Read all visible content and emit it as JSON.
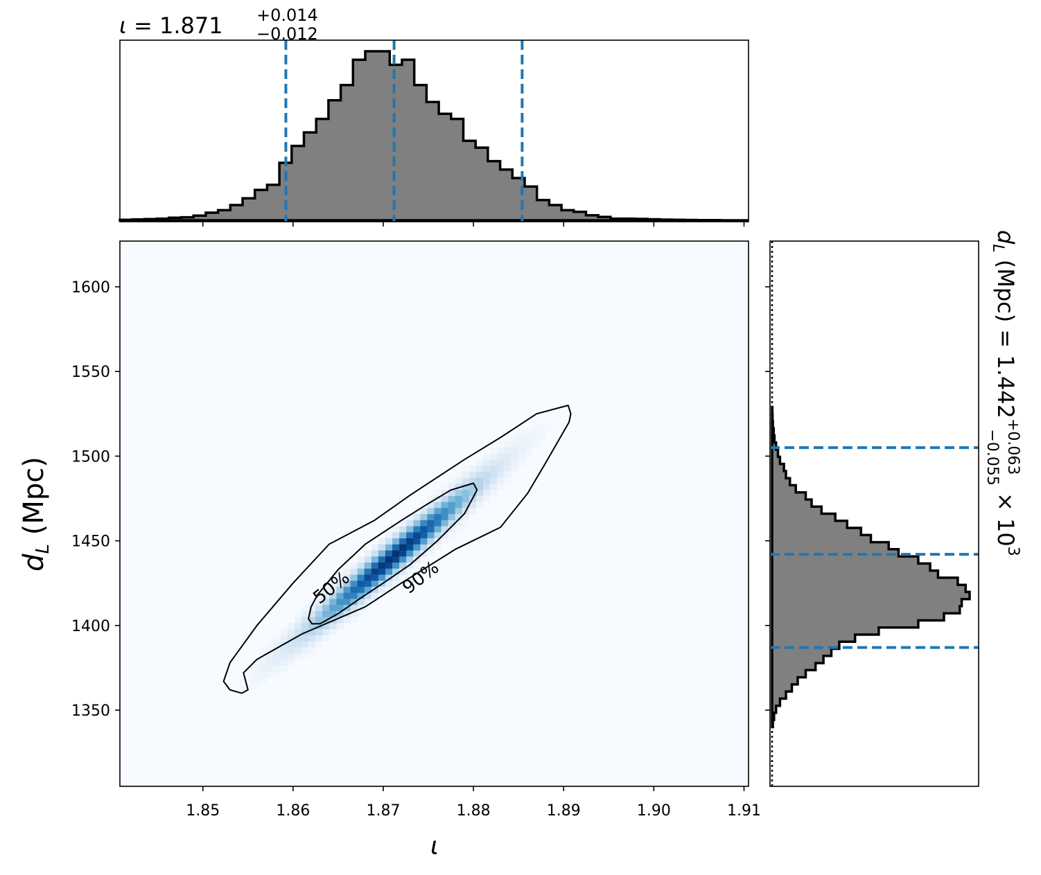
{
  "chart_data": {
    "type": "corner",
    "panels": [
      {
        "name": "marginal-iota",
        "type": "histogram",
        "title": {
          "param": "ι",
          "median": "1.871",
          "plus": "+0.014",
          "minus": "−0.012"
        },
        "xlim": [
          1.8408,
          1.9105
        ],
        "bin_edges_start": 1.8408,
        "bin_width": 0.00136,
        "counts": [
          0.003,
          0.005,
          0.007,
          0.01,
          0.015,
          0.018,
          0.028,
          0.045,
          0.06,
          0.09,
          0.13,
          0.18,
          0.21,
          0.34,
          0.44,
          0.52,
          0.6,
          0.71,
          0.8,
          0.95,
          1.0,
          1.0,
          0.92,
          0.95,
          0.8,
          0.7,
          0.63,
          0.6,
          0.47,
          0.43,
          0.35,
          0.3,
          0.25,
          0.2,
          0.12,
          0.09,
          0.06,
          0.05,
          0.03,
          0.02,
          0.01,
          0.01,
          0.008,
          0.006,
          0.004,
          0.003,
          0.002,
          0.001,
          0.001,
          0.0,
          0.0
        ],
        "quantiles": {
          "lower": 1.8592,
          "median": 1.8712,
          "upper": 1.8854
        },
        "xticks": [
          "1.85",
          "1.86",
          "1.87",
          "1.88",
          "1.89",
          "1.90",
          "1.91"
        ]
      },
      {
        "name": "joint-iota-dL",
        "type": "heatmap",
        "xlabel": "ι",
        "ylabel_main": "d",
        "ylabel_sub": "L",
        "ylabel_units": "(Mpc)",
        "xlim": [
          1.8408,
          1.9105
        ],
        "ylim": [
          1305,
          1627
        ],
        "xticks": [
          "1.85",
          "1.86",
          "1.87",
          "1.88",
          "1.89",
          "1.90",
          "1.91"
        ],
        "yticks": [
          "1350",
          "1400",
          "1450",
          "1500",
          "1550",
          "1600"
        ],
        "density": {
          "center": [
            1.8712,
            1441
          ],
          "slope_dL_per_iota": 4500,
          "sigma_iota": 0.0062,
          "sigma_perp": 6.5
        },
        "contours": [
          {
            "label": "50%",
            "points": [
              [
                1.8621,
                1401
              ],
              [
                1.8617,
                1404
              ],
              [
                1.862,
                1411
              ],
              [
                1.8627,
                1418
              ],
              [
                1.865,
                1433
              ],
              [
                1.868,
                1448
              ],
              [
                1.872,
                1462
              ],
              [
                1.875,
                1472
              ],
              [
                1.8775,
                1480
              ],
              [
                1.88,
                1484
              ],
              [
                1.8804,
                1480
              ],
              [
                1.879,
                1466
              ],
              [
                1.876,
                1450
              ],
              [
                1.873,
                1436
              ],
              [
                1.87,
                1425
              ],
              [
                1.868,
                1418
              ],
              [
                1.865,
                1407
              ],
              [
                1.863,
                1401
              ]
            ]
          },
          {
            "label": "90%",
            "points": [
              [
                1.8543,
                1360
              ],
              [
                1.853,
                1362
              ],
              [
                1.8523,
                1367
              ],
              [
                1.853,
                1378
              ],
              [
                1.856,
                1400
              ],
              [
                1.86,
                1425
              ],
              [
                1.864,
                1448
              ],
              [
                1.869,
                1462
              ],
              [
                1.873,
                1477
              ],
              [
                1.879,
                1498
              ],
              [
                1.883,
                1511
              ],
              [
                1.887,
                1525
              ],
              [
                1.8905,
                1530
              ],
              [
                1.8908,
                1525
              ],
              [
                1.8906,
                1520
              ],
              [
                1.888,
                1496
              ],
              [
                1.886,
                1478
              ],
              [
                1.883,
                1458
              ],
              [
                1.878,
                1445
              ],
              [
                1.872,
                1425
              ],
              [
                1.868,
                1411
              ],
              [
                1.861,
                1395
              ],
              [
                1.856,
                1380
              ],
              [
                1.8545,
                1372
              ],
              [
                1.855,
                1362
              ]
            ]
          }
        ],
        "contour_labels": [
          {
            "text": "50%",
            "at": [
              1.8643,
              1422
            ]
          },
          {
            "text": "90%",
            "at": [
              1.8742,
              1428
            ]
          }
        ]
      },
      {
        "name": "marginal-dL",
        "type": "histogram",
        "orientation": "horizontal",
        "title": {
          "param_main": "d",
          "param_sub": "L",
          "units": "(Mpc) =",
          "median": "1.442",
          "plus": "+0.063",
          "minus": "−0.055",
          "scale": "× 10",
          "scale_exp": "3"
        },
        "ylim": [
          1305,
          1627
        ],
        "bin_edges_start": 1340.0,
        "bin_width": 4.2,
        "counts": [
          0.004,
          0.01,
          0.02,
          0.04,
          0.07,
          0.1,
          0.13,
          0.17,
          0.22,
          0.26,
          0.3,
          0.34,
          0.42,
          0.54,
          0.74,
          0.87,
          0.95,
          0.96,
          1.0,
          0.98,
          0.94,
          0.84,
          0.8,
          0.74,
          0.64,
          0.59,
          0.5,
          0.45,
          0.38,
          0.32,
          0.25,
          0.2,
          0.17,
          0.12,
          0.09,
          0.07,
          0.06,
          0.04,
          0.03,
          0.02,
          0.012,
          0.008,
          0.004,
          0.002,
          0.001
        ],
        "quantiles": {
          "lower": 1387,
          "median": 1442,
          "upper": 1505
        }
      }
    ],
    "colors": {
      "hist_fill": "#808080",
      "hist_edge": "#000000",
      "quantile_line": "#1f77b4",
      "cmap_low": "#f7fbff",
      "cmap_high": "#08306b"
    }
  }
}
